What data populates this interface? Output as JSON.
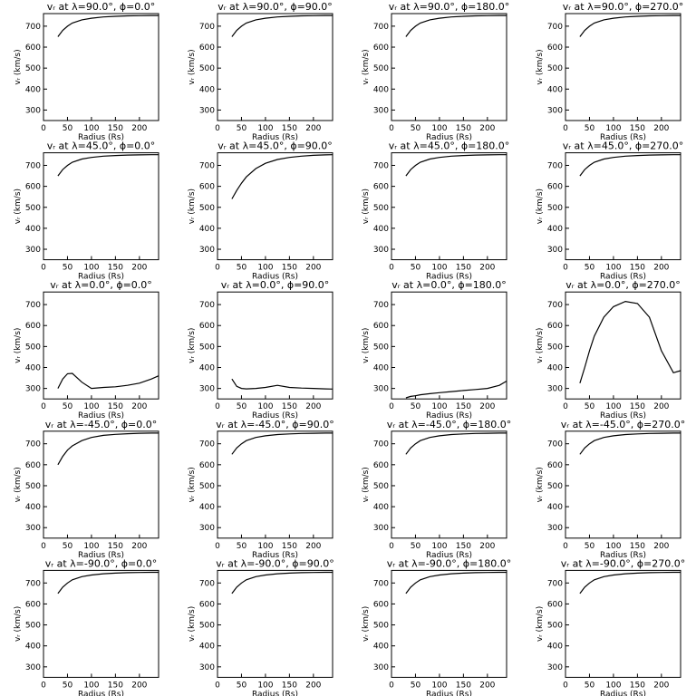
{
  "chart_data": [
    {
      "type": "line",
      "title": "vᵣ at λ=90.0°, ϕ=0.0°",
      "xlabel": "Radius (Rs)",
      "ylabel": "vᵣ (km/s)",
      "x": [
        30,
        40,
        50,
        60,
        80,
        100,
        125,
        150,
        175,
        200,
        225,
        240
      ],
      "values": [
        650,
        680,
        700,
        715,
        730,
        738,
        744,
        747,
        749,
        750,
        751,
        751
      ],
      "xlim": [
        0,
        240
      ],
      "ylim": [
        250,
        760
      ],
      "xticks": [
        0,
        50,
        100,
        150,
        200
      ],
      "yticks": [
        300,
        400,
        500,
        600,
        700
      ],
      "color": "#000000"
    },
    {
      "type": "line",
      "title": "vᵣ at λ=90.0°, ϕ=90.0°",
      "xlabel": "Radius (Rs)",
      "ylabel": "vᵣ (km/s)",
      "x": [
        30,
        40,
        50,
        60,
        80,
        100,
        125,
        150,
        175,
        200,
        225,
        240
      ],
      "values": [
        650,
        680,
        700,
        715,
        730,
        738,
        744,
        747,
        749,
        750,
        751,
        751
      ],
      "xlim": [
        0,
        240
      ],
      "ylim": [
        250,
        760
      ],
      "xticks": [
        0,
        50,
        100,
        150,
        200
      ],
      "yticks": [
        300,
        400,
        500,
        600,
        700
      ],
      "color": "#000000"
    },
    {
      "type": "line",
      "title": "vᵣ at λ=90.0°, ϕ=180.0°",
      "xlabel": "Radius (Rs)",
      "ylabel": "vᵣ (km/s)",
      "x": [
        30,
        40,
        50,
        60,
        80,
        100,
        125,
        150,
        175,
        200,
        225,
        240
      ],
      "values": [
        650,
        680,
        700,
        715,
        730,
        738,
        744,
        747,
        749,
        750,
        751,
        751
      ],
      "xlim": [
        0,
        240
      ],
      "ylim": [
        250,
        760
      ],
      "xticks": [
        0,
        50,
        100,
        150,
        200
      ],
      "yticks": [
        300,
        400,
        500,
        600,
        700
      ],
      "color": "#000000"
    },
    {
      "type": "line",
      "title": "vᵣ at λ=90.0°, ϕ=270.0°",
      "xlabel": "Radius (Rs)",
      "ylabel": "vᵣ (km/s)",
      "x": [
        30,
        40,
        50,
        60,
        80,
        100,
        125,
        150,
        175,
        200,
        225,
        240
      ],
      "values": [
        650,
        680,
        700,
        715,
        730,
        738,
        744,
        747,
        749,
        750,
        751,
        751
      ],
      "xlim": [
        0,
        240
      ],
      "ylim": [
        250,
        760
      ],
      "xticks": [
        0,
        50,
        100,
        150,
        200
      ],
      "yticks": [
        300,
        400,
        500,
        600,
        700
      ],
      "color": "#000000"
    },
    {
      "type": "line",
      "title": "vᵣ at λ=45.0°, ϕ=0.0°",
      "xlabel": "Radius (Rs)",
      "ylabel": "vᵣ (km/s)",
      "x": [
        30,
        40,
        50,
        60,
        80,
        100,
        125,
        150,
        175,
        200,
        225,
        240
      ],
      "values": [
        650,
        680,
        700,
        715,
        730,
        738,
        744,
        747,
        749,
        750,
        751,
        751
      ],
      "xlim": [
        0,
        240
      ],
      "ylim": [
        250,
        760
      ],
      "xticks": [
        0,
        50,
        100,
        150,
        200
      ],
      "yticks": [
        300,
        400,
        500,
        600,
        700
      ],
      "color": "#000000"
    },
    {
      "type": "line",
      "title": "vᵣ at λ=45.0°, ϕ=90.0°",
      "xlabel": "Radius (Rs)",
      "ylabel": "vᵣ (km/s)",
      "x": [
        30,
        40,
        50,
        60,
        80,
        100,
        125,
        150,
        175,
        200,
        225,
        240
      ],
      "values": [
        540,
        580,
        615,
        645,
        685,
        710,
        728,
        738,
        744,
        748,
        750,
        751
      ],
      "xlim": [
        0,
        240
      ],
      "ylim": [
        250,
        760
      ],
      "xticks": [
        0,
        50,
        100,
        150,
        200
      ],
      "yticks": [
        300,
        400,
        500,
        600,
        700
      ],
      "color": "#000000"
    },
    {
      "type": "line",
      "title": "vᵣ at λ=45.0°, ϕ=180.0°",
      "xlabel": "Radius (Rs)",
      "ylabel": "vᵣ (km/s)",
      "x": [
        30,
        40,
        50,
        60,
        80,
        100,
        125,
        150,
        175,
        200,
        225,
        240
      ],
      "values": [
        650,
        680,
        700,
        715,
        730,
        738,
        744,
        747,
        749,
        750,
        751,
        751
      ],
      "xlim": [
        0,
        240
      ],
      "ylim": [
        250,
        760
      ],
      "xticks": [
        0,
        50,
        100,
        150,
        200
      ],
      "yticks": [
        300,
        400,
        500,
        600,
        700
      ],
      "color": "#000000"
    },
    {
      "type": "line",
      "title": "vᵣ at λ=45.0°, ϕ=270.0°",
      "xlabel": "Radius (Rs)",
      "ylabel": "vᵣ (km/s)",
      "x": [
        30,
        40,
        50,
        60,
        80,
        100,
        125,
        150,
        175,
        200,
        225,
        240
      ],
      "values": [
        650,
        680,
        700,
        715,
        730,
        738,
        744,
        747,
        749,
        750,
        751,
        751
      ],
      "xlim": [
        0,
        240
      ],
      "ylim": [
        250,
        760
      ],
      "xticks": [
        0,
        50,
        100,
        150,
        200
      ],
      "yticks": [
        300,
        400,
        500,
        600,
        700
      ],
      "color": "#000000"
    },
    {
      "type": "line",
      "title": "vᵣ at λ=0.0°, ϕ=0.0°",
      "xlabel": "Radius (Rs)",
      "ylabel": "vᵣ (km/s)",
      "x": [
        30,
        40,
        50,
        60,
        80,
        100,
        125,
        150,
        175,
        200,
        225,
        240
      ],
      "values": [
        300,
        345,
        370,
        372,
        330,
        300,
        305,
        308,
        315,
        325,
        345,
        360
      ],
      "xlim": [
        0,
        240
      ],
      "ylim": [
        250,
        760
      ],
      "xticks": [
        0,
        50,
        100,
        150,
        200
      ],
      "yticks": [
        300,
        400,
        500,
        600,
        700
      ],
      "color": "#000000"
    },
    {
      "type": "line",
      "title": "vᵣ at λ=0.0°, ϕ=90.0°",
      "xlabel": "Radius (Rs)",
      "ylabel": "vᵣ (km/s)",
      "x": [
        30,
        40,
        50,
        60,
        80,
        100,
        125,
        150,
        175,
        200,
        225,
        240
      ],
      "values": [
        345,
        310,
        300,
        298,
        300,
        305,
        315,
        305,
        302,
        300,
        298,
        297
      ],
      "xlim": [
        0,
        240
      ],
      "ylim": [
        250,
        760
      ],
      "xticks": [
        0,
        50,
        100,
        150,
        200
      ],
      "yticks": [
        300,
        400,
        500,
        600,
        700
      ],
      "color": "#000000"
    },
    {
      "type": "line",
      "title": "vᵣ at λ=0.0°, ϕ=180.0°",
      "xlabel": "Radius (Rs)",
      "ylabel": "vᵣ (km/s)",
      "x": [
        30,
        40,
        50,
        60,
        80,
        100,
        125,
        150,
        175,
        200,
        225,
        240
      ],
      "values": [
        255,
        262,
        265,
        270,
        275,
        280,
        285,
        290,
        295,
        300,
        315,
        335
      ],
      "xlim": [
        0,
        240
      ],
      "ylim": [
        250,
        760
      ],
      "xticks": [
        0,
        50,
        100,
        150,
        200
      ],
      "yticks": [
        300,
        400,
        500,
        600,
        700
      ],
      "color": "#000000"
    },
    {
      "type": "line",
      "title": "vᵣ at λ=0.0°, ϕ=270.0°",
      "xlabel": "Radius (Rs)",
      "ylabel": "vᵣ (km/s)",
      "x": [
        30,
        40,
        50,
        60,
        80,
        100,
        125,
        150,
        175,
        200,
        225,
        240
      ],
      "values": [
        325,
        400,
        480,
        550,
        640,
        690,
        715,
        705,
        640,
        480,
        375,
        385
      ],
      "xlim": [
        0,
        240
      ],
      "ylim": [
        250,
        760
      ],
      "xticks": [
        0,
        50,
        100,
        150,
        200
      ],
      "yticks": [
        300,
        400,
        500,
        600,
        700
      ],
      "color": "#000000"
    },
    {
      "type": "line",
      "title": "vᵣ at λ=-45.0°, ϕ=0.0°",
      "xlabel": "Radius (Rs)",
      "ylabel": "vᵣ (km/s)",
      "x": [
        30,
        40,
        50,
        60,
        80,
        100,
        125,
        150,
        175,
        200,
        225,
        240
      ],
      "values": [
        600,
        640,
        670,
        690,
        715,
        730,
        740,
        745,
        748,
        750,
        751,
        751
      ],
      "xlim": [
        0,
        240
      ],
      "ylim": [
        250,
        760
      ],
      "xticks": [
        0,
        50,
        100,
        150,
        200
      ],
      "yticks": [
        300,
        400,
        500,
        600,
        700
      ],
      "color": "#000000"
    },
    {
      "type": "line",
      "title": "vᵣ at λ=-45.0°, ϕ=90.0°",
      "xlabel": "Radius (Rs)",
      "ylabel": "vᵣ (km/s)",
      "x": [
        30,
        40,
        50,
        60,
        80,
        100,
        125,
        150,
        175,
        200,
        225,
        240
      ],
      "values": [
        650,
        680,
        700,
        715,
        730,
        738,
        744,
        747,
        749,
        750,
        751,
        751
      ],
      "xlim": [
        0,
        240
      ],
      "ylim": [
        250,
        760
      ],
      "xticks": [
        0,
        50,
        100,
        150,
        200
      ],
      "yticks": [
        300,
        400,
        500,
        600,
        700
      ],
      "color": "#000000"
    },
    {
      "type": "line",
      "title": "vᵣ at λ=-45.0°, ϕ=180.0°",
      "xlabel": "Radius (Rs)",
      "ylabel": "vᵣ (km/s)",
      "x": [
        30,
        40,
        50,
        60,
        80,
        100,
        125,
        150,
        175,
        200,
        225,
        240
      ],
      "values": [
        650,
        680,
        700,
        715,
        730,
        738,
        744,
        747,
        749,
        750,
        751,
        751
      ],
      "xlim": [
        0,
        240
      ],
      "ylim": [
        250,
        760
      ],
      "xticks": [
        0,
        50,
        100,
        150,
        200
      ],
      "yticks": [
        300,
        400,
        500,
        600,
        700
      ],
      "color": "#000000"
    },
    {
      "type": "line",
      "title": "vᵣ at λ=-45.0°, ϕ=270.0°",
      "xlabel": "Radius (Rs)",
      "ylabel": "vᵣ (km/s)",
      "x": [
        30,
        40,
        50,
        60,
        80,
        100,
        125,
        150,
        175,
        200,
        225,
        240
      ],
      "values": [
        650,
        680,
        700,
        715,
        730,
        738,
        744,
        747,
        749,
        750,
        751,
        751
      ],
      "xlim": [
        0,
        240
      ],
      "ylim": [
        250,
        760
      ],
      "xticks": [
        0,
        50,
        100,
        150,
        200
      ],
      "yticks": [
        300,
        400,
        500,
        600,
        700
      ],
      "color": "#000000"
    },
    {
      "type": "line",
      "title": "vᵣ at λ=-90.0°, ϕ=0.0°",
      "xlabel": "Radius (Rs)",
      "ylabel": "vᵣ (km/s)",
      "x": [
        30,
        40,
        50,
        60,
        80,
        100,
        125,
        150,
        175,
        200,
        225,
        240
      ],
      "values": [
        650,
        680,
        700,
        715,
        730,
        738,
        744,
        747,
        749,
        750,
        751,
        751
      ],
      "xlim": [
        0,
        240
      ],
      "ylim": [
        250,
        760
      ],
      "xticks": [
        0,
        50,
        100,
        150,
        200
      ],
      "yticks": [
        300,
        400,
        500,
        600,
        700
      ],
      "color": "#000000"
    },
    {
      "type": "line",
      "title": "vᵣ at λ=-90.0°, ϕ=90.0°",
      "xlabel": "Radius (Rs)",
      "ylabel": "vᵣ (km/s)",
      "x": [
        30,
        40,
        50,
        60,
        80,
        100,
        125,
        150,
        175,
        200,
        225,
        240
      ],
      "values": [
        650,
        680,
        700,
        715,
        730,
        738,
        744,
        747,
        749,
        750,
        751,
        751
      ],
      "xlim": [
        0,
        240
      ],
      "ylim": [
        250,
        760
      ],
      "xticks": [
        0,
        50,
        100,
        150,
        200
      ],
      "yticks": [
        300,
        400,
        500,
        600,
        700
      ],
      "color": "#000000"
    },
    {
      "type": "line",
      "title": "vᵣ at λ=-90.0°, ϕ=180.0°",
      "xlabel": "Radius (Rs)",
      "ylabel": "vᵣ (km/s)",
      "x": [
        30,
        40,
        50,
        60,
        80,
        100,
        125,
        150,
        175,
        200,
        225,
        240
      ],
      "values": [
        650,
        680,
        700,
        715,
        730,
        738,
        744,
        747,
        749,
        750,
        751,
        751
      ],
      "xlim": [
        0,
        240
      ],
      "ylim": [
        250,
        760
      ],
      "xticks": [
        0,
        50,
        100,
        150,
        200
      ],
      "yticks": [
        300,
        400,
        500,
        600,
        700
      ],
      "color": "#000000"
    },
    {
      "type": "line",
      "title": "vᵣ at λ=-90.0°, ϕ=270.0°",
      "xlabel": "Radius (Rs)",
      "ylabel": "vᵣ (km/s)",
      "x": [
        30,
        40,
        50,
        60,
        80,
        100,
        125,
        150,
        175,
        200,
        225,
        240
      ],
      "values": [
        650,
        680,
        700,
        715,
        730,
        738,
        744,
        747,
        749,
        750,
        751,
        751
      ],
      "xlim": [
        0,
        240
      ],
      "ylim": [
        250,
        760
      ],
      "xticks": [
        0,
        50,
        100,
        150,
        200
      ],
      "yticks": [
        300,
        400,
        500,
        600,
        700
      ],
      "color": "#000000"
    }
  ]
}
